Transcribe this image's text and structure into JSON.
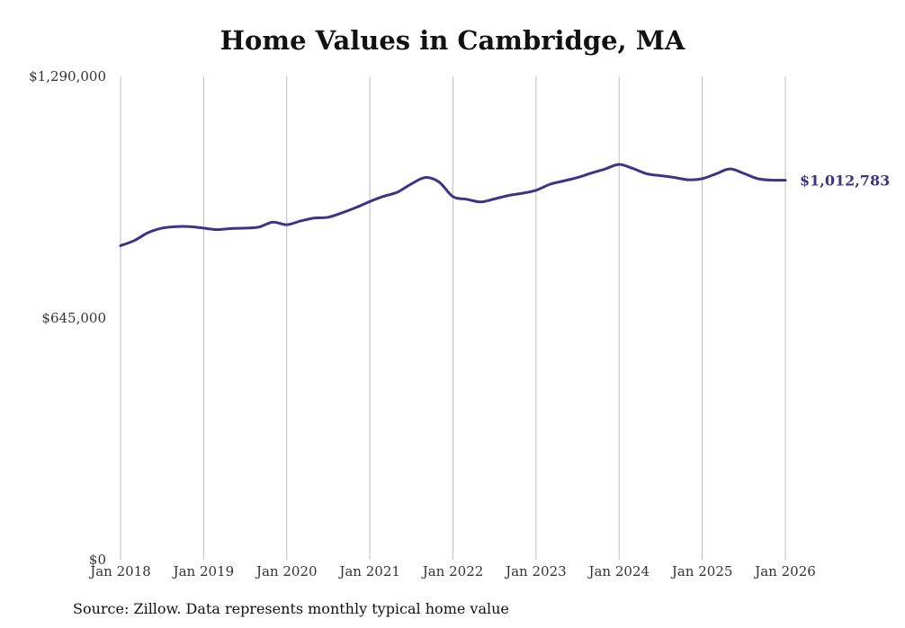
{
  "chart_data": {
    "type": "line",
    "title": "Home Values in Cambridge, MA",
    "source": "Source: Zillow. Data represents monthly typical home value",
    "xlabel": "",
    "ylabel": "",
    "ylim": [
      0,
      1290000
    ],
    "y_ticks": [
      {
        "value": 0,
        "label": "$0"
      },
      {
        "value": 645000,
        "label": "$645,000"
      },
      {
        "value": 1290000,
        "label": "$1,290,000"
      }
    ],
    "x_ticks": [
      {
        "value": 2018,
        "label": "Jan 2018"
      },
      {
        "value": 2019,
        "label": "Jan 2019"
      },
      {
        "value": 2020,
        "label": "Jan 2020"
      },
      {
        "value": 2021,
        "label": "Jan 2021"
      },
      {
        "value": 2022,
        "label": "Jan 2022"
      },
      {
        "value": 2023,
        "label": "Jan 2023"
      },
      {
        "value": 2024,
        "label": "Jan 2024"
      },
      {
        "value": 2025,
        "label": "Jan 2025"
      },
      {
        "value": 2026,
        "label": "Jan 2026"
      }
    ],
    "xlim": [
      2018,
      2026
    ],
    "grid": "vertical",
    "end_label": "$1,012,783",
    "series": [
      {
        "name": "Typical home value",
        "color": "#3d3387",
        "x": [
          2018.0,
          2018.167,
          2018.333,
          2018.5,
          2018.667,
          2018.833,
          2019.0,
          2019.167,
          2019.333,
          2019.5,
          2019.667,
          2019.833,
          2020.0,
          2020.167,
          2020.333,
          2020.5,
          2020.667,
          2020.833,
          2021.0,
          2021.167,
          2021.333,
          2021.5,
          2021.667,
          2021.833,
          2022.0,
          2022.167,
          2022.333,
          2022.5,
          2022.667,
          2022.833,
          2023.0,
          2023.167,
          2023.333,
          2023.5,
          2023.667,
          2023.833,
          2024.0,
          2024.167,
          2024.333,
          2024.5,
          2024.667,
          2024.833,
          2025.0,
          2025.167,
          2025.333,
          2025.5,
          2025.667,
          2025.833,
          2026.0
        ],
        "values": [
          838000,
          852000,
          873000,
          885000,
          889000,
          889000,
          885000,
          881000,
          884000,
          885000,
          888000,
          901000,
          894000,
          904000,
          912000,
          914000,
          926000,
          940000,
          956000,
          970000,
          981000,
          1003000,
          1020000,
          1008000,
          969000,
          962000,
          955000,
          963000,
          972000,
          978000,
          986000,
          1002000,
          1011000,
          1020000,
          1032000,
          1043000,
          1055000,
          1044000,
          1030000,
          1025000,
          1020000,
          1014000,
          1017000,
          1030000,
          1043000,
          1031000,
          1017000,
          1013000,
          1012783
        ]
      }
    ]
  }
}
